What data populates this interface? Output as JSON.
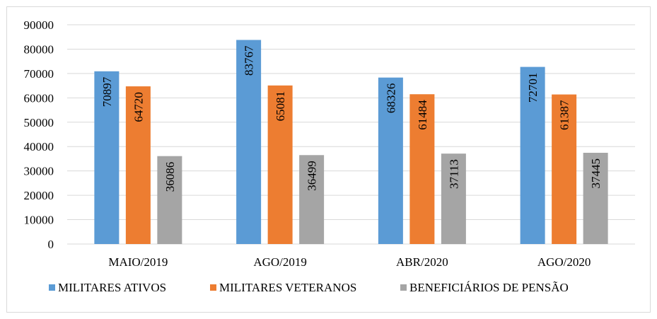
{
  "chart_data": {
    "type": "bar",
    "categories": [
      "MAIO/2019",
      "AGO/2019",
      "ABR/2020",
      "AGO/2020"
    ],
    "series": [
      {
        "name": "MILITARES ATIVOS",
        "color": "#5b9bd5",
        "values": [
          70897,
          83767,
          68326,
          72701
        ]
      },
      {
        "name": "MILITARES VETERANOS",
        "color": "#ed7d31",
        "values": [
          64720,
          65081,
          61484,
          61387
        ]
      },
      {
        "name": "BENEFICIÁRIOS DE PENSÃO",
        "color": "#a5a5a5",
        "values": [
          36086,
          36499,
          37113,
          37445
        ]
      }
    ],
    "y_ticks": [
      "0",
      "10000",
      "20000",
      "30000",
      "40000",
      "50000",
      "60000",
      "70000",
      "80000",
      "90000"
    ],
    "ylim": [
      0,
      90000
    ],
    "grid": true,
    "legend_position": "bottom",
    "data_labels": "inside-rotated"
  }
}
